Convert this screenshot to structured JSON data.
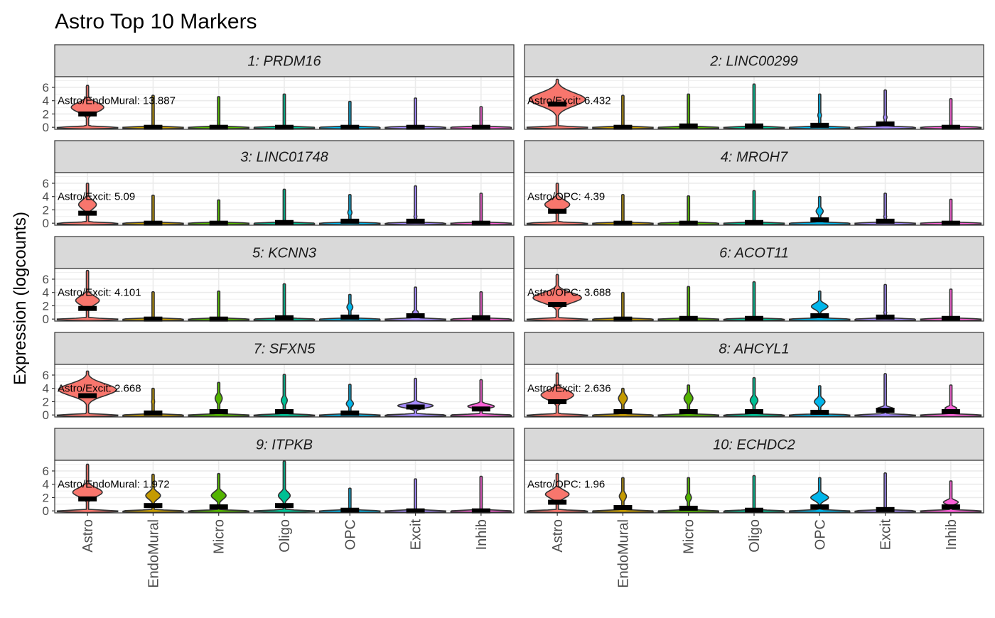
{
  "title": "Astro Top 10 Markers",
  "ylabel": "Expression (logcounts)",
  "colors": {
    "Astro": "#F8766D",
    "EndoMural": "#C49A00",
    "Micro": "#53B400",
    "Oligo": "#00C094",
    "OPC": "#00B6EB",
    "Excit": "#A58AFF",
    "Inhib": "#FB61D7",
    "strip_fill": "#D9D9D9",
    "panel_border": "#333333",
    "grid": "#EBEBEB",
    "violin_outline": "#333333"
  },
  "chart_data": {
    "type": "violin",
    "facet_layout": "5 rows x 2 columns",
    "categories": [
      "Astro",
      "EndoMural",
      "Micro",
      "Oligo",
      "OPC",
      "Excit",
      "Inhib"
    ],
    "y_ticks": [
      0,
      2,
      4,
      6
    ],
    "ylim": [
      -0.3,
      7.6
    ],
    "grid": true,
    "legend": "none",
    "panels": [
      {
        "label": "1: PRDM16",
        "annotation": "Astro/EndoMural: 13.887",
        "violins": [
          {
            "max": 6.3,
            "median": 2.0,
            "bulge": 3.0,
            "bulge_w": 0.55
          },
          {
            "max": 4.8,
            "median": 0,
            "bulge": 0,
            "bulge_w": 0
          },
          {
            "max": 4.6,
            "median": 0,
            "bulge": 0,
            "bulge_w": 0
          },
          {
            "max": 5.0,
            "median": 0,
            "bulge": 0,
            "bulge_w": 0
          },
          {
            "max": 3.9,
            "median": 0,
            "bulge": 0,
            "bulge_w": 0
          },
          {
            "max": 4.4,
            "median": 0,
            "bulge": 0,
            "bulge_w": 0
          },
          {
            "max": 3.1,
            "median": 0,
            "bulge": 0,
            "bulge_w": 0
          }
        ]
      },
      {
        "label": "2: LINC00299",
        "annotation": "Astro/Excit: 6.432",
        "violins": [
          {
            "max": 7.2,
            "median": 3.5,
            "bulge": 4.2,
            "bulge_w": 0.95
          },
          {
            "max": 4.8,
            "median": 0,
            "bulge": 0,
            "bulge_w": 0
          },
          {
            "max": 5.0,
            "median": 0.2,
            "bulge": 0,
            "bulge_w": 0
          },
          {
            "max": 6.5,
            "median": 0.2,
            "bulge": 0,
            "bulge_w": 0
          },
          {
            "max": 5.0,
            "median": 0.3,
            "bulge": 1.8,
            "bulge_w": 0.06
          },
          {
            "max": 5.6,
            "median": 0.5,
            "bulge": 1.5,
            "bulge_w": 0.06
          },
          {
            "max": 4.3,
            "median": 0,
            "bulge": 0,
            "bulge_w": 0
          }
        ]
      },
      {
        "label": "3: LINC01748",
        "annotation": "Astro/Excit: 5.09",
        "violins": [
          {
            "max": 6.0,
            "median": 1.5,
            "bulge": 2.8,
            "bulge_w": 0.3
          },
          {
            "max": 4.2,
            "median": 0,
            "bulge": 0,
            "bulge_w": 0
          },
          {
            "max": 3.5,
            "median": 0,
            "bulge": 0,
            "bulge_w": 0
          },
          {
            "max": 5.1,
            "median": 0.1,
            "bulge": 0,
            "bulge_w": 0
          },
          {
            "max": 4.3,
            "median": 0.3,
            "bulge": 1.6,
            "bulge_w": 0.07
          },
          {
            "max": 5.6,
            "median": 0.3,
            "bulge": 1.0,
            "bulge_w": 0.05
          },
          {
            "max": 4.5,
            "median": 0,
            "bulge": 0,
            "bulge_w": 0
          }
        ]
      },
      {
        "label": "4: MROH7",
        "annotation": "Astro/OPC: 4.39",
        "violins": [
          {
            "max": 6.0,
            "median": 1.8,
            "bulge": 2.8,
            "bulge_w": 0.42
          },
          {
            "max": 4.3,
            "median": 0,
            "bulge": 0,
            "bulge_w": 0
          },
          {
            "max": 4.1,
            "median": 0,
            "bulge": 0,
            "bulge_w": 0
          },
          {
            "max": 4.9,
            "median": 0.1,
            "bulge": 0,
            "bulge_w": 0
          },
          {
            "max": 4.0,
            "median": 0.5,
            "bulge": 1.8,
            "bulge_w": 0.12
          },
          {
            "max": 4.5,
            "median": 0.3,
            "bulge": 1.0,
            "bulge_w": 0.05
          },
          {
            "max": 3.6,
            "median": 0,
            "bulge": 0,
            "bulge_w": 0
          }
        ]
      },
      {
        "label": "5: KCNN3",
        "annotation": "Astro/Excit: 4.101",
        "violins": [
          {
            "max": 7.3,
            "median": 1.6,
            "bulge": 2.8,
            "bulge_w": 0.4
          },
          {
            "max": 4.1,
            "median": 0,
            "bulge": 0,
            "bulge_w": 0
          },
          {
            "max": 4.2,
            "median": 0,
            "bulge": 0,
            "bulge_w": 0
          },
          {
            "max": 5.3,
            "median": 0.2,
            "bulge": 0,
            "bulge_w": 0
          },
          {
            "max": 3.7,
            "median": 0.3,
            "bulge": 1.8,
            "bulge_w": 0.1
          },
          {
            "max": 4.8,
            "median": 0.5,
            "bulge": 1.0,
            "bulge_w": 0.1
          },
          {
            "max": 4.1,
            "median": 0.2,
            "bulge": 0,
            "bulge_w": 0
          }
        ]
      },
      {
        "label": "6: ACOT11",
        "annotation": "Astro/OPC: 3.688",
        "violins": [
          {
            "max": 6.7,
            "median": 2.2,
            "bulge": 3.2,
            "bulge_w": 0.82
          },
          {
            "max": 4.0,
            "median": 0,
            "bulge": 0,
            "bulge_w": 0
          },
          {
            "max": 4.9,
            "median": 0.1,
            "bulge": 0,
            "bulge_w": 0
          },
          {
            "max": 5.6,
            "median": 0.1,
            "bulge": 0,
            "bulge_w": 0
          },
          {
            "max": 4.2,
            "median": 0.5,
            "bulge": 1.9,
            "bulge_w": 0.28
          },
          {
            "max": 5.2,
            "median": 0.3,
            "bulge": 1.0,
            "bulge_w": 0.05
          },
          {
            "max": 4.5,
            "median": 0.1,
            "bulge": 0,
            "bulge_w": 0
          }
        ]
      },
      {
        "label": "7: SFXN5",
        "annotation": "Astro/Excit: 2.668",
        "violins": [
          {
            "max": 6.6,
            "median": 2.9,
            "bulge": 3.8,
            "bulge_w": 0.98
          },
          {
            "max": 4.0,
            "median": 0.3,
            "bulge": 2.0,
            "bulge_w": 0.05
          },
          {
            "max": 4.9,
            "median": 0.5,
            "bulge": 2.5,
            "bulge_w": 0.12
          },
          {
            "max": 6.1,
            "median": 0.5,
            "bulge": 2.2,
            "bulge_w": 0.1
          },
          {
            "max": 4.6,
            "median": 0.3,
            "bulge": 1.7,
            "bulge_w": 0.12
          },
          {
            "max": 5.5,
            "median": 1.2,
            "bulge": 1.4,
            "bulge_w": 0.6
          },
          {
            "max": 5.3,
            "median": 0.9,
            "bulge": 1.3,
            "bulge_w": 0.45
          }
        ]
      },
      {
        "label": "8: AHCYL1",
        "annotation": "Astro/Excit: 2.636",
        "violins": [
          {
            "max": 6.3,
            "median": 2.0,
            "bulge": 3.0,
            "bulge_w": 0.55
          },
          {
            "max": 4.0,
            "median": 0.5,
            "bulge": 2.5,
            "bulge_w": 0.15
          },
          {
            "max": 4.5,
            "median": 0.5,
            "bulge": 2.5,
            "bulge_w": 0.15
          },
          {
            "max": 5.6,
            "median": 0.5,
            "bulge": 2.2,
            "bulge_w": 0.13
          },
          {
            "max": 4.4,
            "median": 0.4,
            "bulge": 2.0,
            "bulge_w": 0.18
          },
          {
            "max": 6.2,
            "median": 0.7,
            "bulge": 0.9,
            "bulge_w": 0.3
          },
          {
            "max": 4.5,
            "median": 0.5,
            "bulge": 1.0,
            "bulge_w": 0.2
          }
        ]
      },
      {
        "label": "9: ITPKB",
        "annotation": "Astro/EndoMural: 1.972",
        "violins": [
          {
            "max": 7.0,
            "median": 1.8,
            "bulge": 2.8,
            "bulge_w": 0.5
          },
          {
            "max": 5.5,
            "median": 0.8,
            "bulge": 2.3,
            "bulge_w": 0.25
          },
          {
            "max": 5.6,
            "median": 0.6,
            "bulge": 2.3,
            "bulge_w": 0.25
          },
          {
            "max": 7.5,
            "median": 0.8,
            "bulge": 2.3,
            "bulge_w": 0.2
          },
          {
            "max": 3.4,
            "median": 0.1,
            "bulge": 0,
            "bulge_w": 0
          },
          {
            "max": 4.8,
            "median": 0,
            "bulge": 0,
            "bulge_w": 0
          },
          {
            "max": 5.2,
            "median": 0,
            "bulge": 0,
            "bulge_w": 0
          }
        ]
      },
      {
        "label": "10: ECHDC2",
        "annotation": "Astro/OPC: 1.96",
        "violins": [
          {
            "max": 5.6,
            "median": 1.3,
            "bulge": 2.5,
            "bulge_w": 0.4
          },
          {
            "max": 5.0,
            "median": 0.5,
            "bulge": 2.2,
            "bulge_w": 0.12
          },
          {
            "max": 5.0,
            "median": 0.4,
            "bulge": 2.0,
            "bulge_w": 0.1
          },
          {
            "max": 5.3,
            "median": 0.1,
            "bulge": 0,
            "bulge_w": 0
          },
          {
            "max": 5.0,
            "median": 0.6,
            "bulge": 2.0,
            "bulge_w": 0.3
          },
          {
            "max": 5.7,
            "median": 0.2,
            "bulge": 0,
            "bulge_w": 0
          },
          {
            "max": 4.5,
            "median": 0.6,
            "bulge": 1.3,
            "bulge_w": 0.25
          }
        ]
      }
    ]
  }
}
